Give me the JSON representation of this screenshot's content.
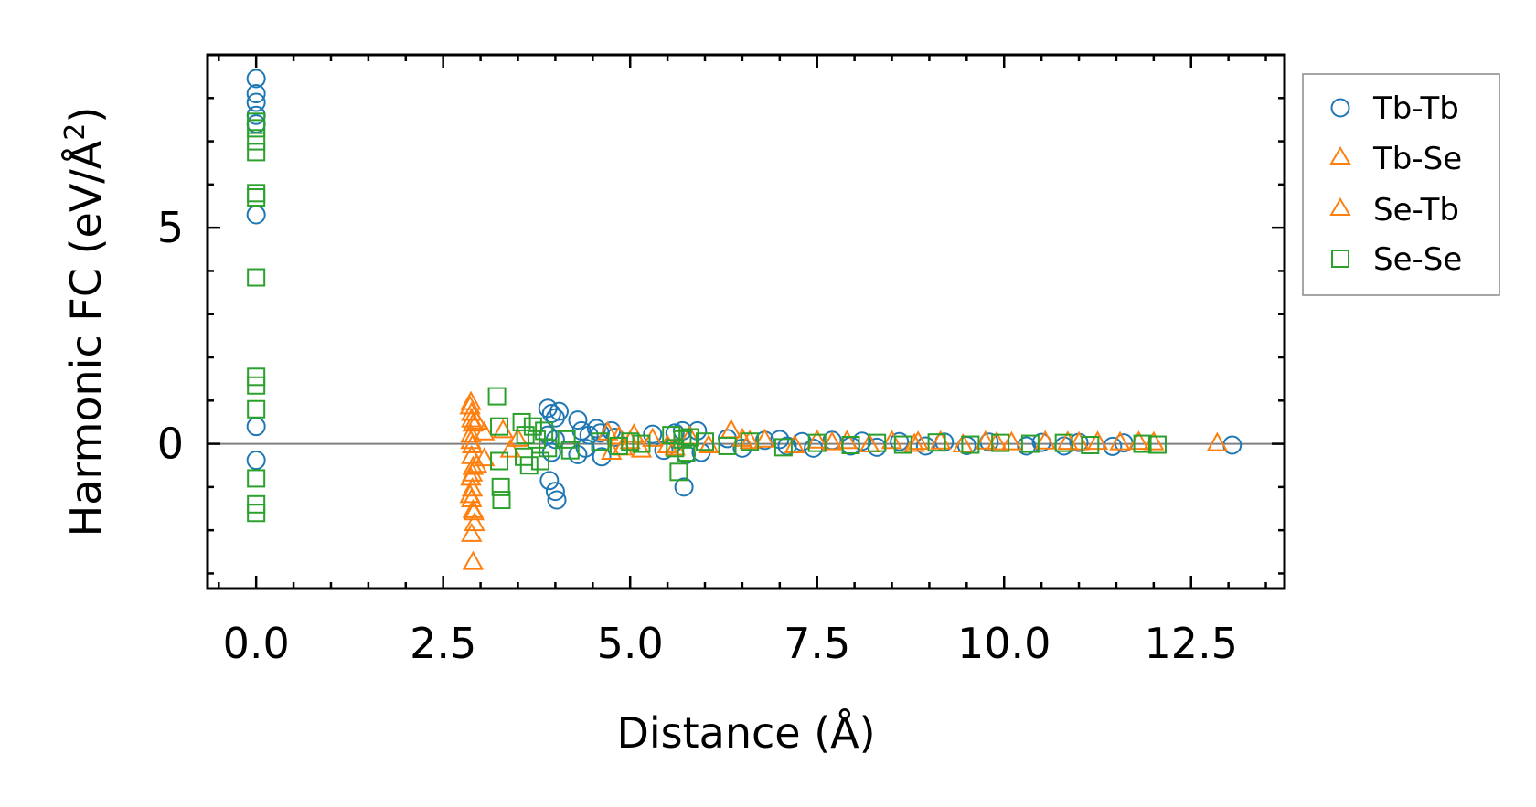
{
  "chart_data": {
    "type": "scatter",
    "title": "",
    "xlabel": "Distance (Å)",
    "ylabel": "Harmonic FC (eV/Å²)",
    "ylabel_parts": {
      "main": "Harmonic FC (eV/Å",
      "sup": "2",
      "close": ")"
    },
    "xlim": [
      -0.65,
      13.75
    ],
    "ylim": [
      -3.35,
      9.0
    ],
    "xticks": [
      0.0,
      2.5,
      5.0,
      7.5,
      10.0,
      12.5
    ],
    "xtick_labels": [
      "0.0",
      "2.5",
      "5.0",
      "7.5",
      "10.0",
      "12.5"
    ],
    "yticks": [
      0,
      5
    ],
    "ytick_labels": [
      "0",
      "5"
    ],
    "zero_line": true,
    "legend_position": "outside-right-top",
    "series": [
      {
        "name": "Tb-Tb",
        "marker": "circle",
        "color": "#1f77b4",
        "points": [
          [
            0.0,
            8.45
          ],
          [
            0.0,
            8.1
          ],
          [
            0.0,
            7.9
          ],
          [
            0.0,
            7.6
          ],
          [
            0.0,
            7.4
          ],
          [
            0.0,
            5.3
          ],
          [
            0.0,
            0.4
          ],
          [
            0.0,
            -0.38
          ],
          [
            3.9,
            0.82
          ],
          [
            3.95,
            0.7
          ],
          [
            4.0,
            0.6
          ],
          [
            4.05,
            0.75
          ],
          [
            3.9,
            0.2
          ],
          [
            3.95,
            -0.2
          ],
          [
            4.0,
            0.1
          ],
          [
            3.92,
            -0.85
          ],
          [
            4.0,
            -1.1
          ],
          [
            4.02,
            -1.3
          ],
          [
            4.3,
            0.55
          ],
          [
            4.35,
            0.3
          ],
          [
            4.3,
            -0.25
          ],
          [
            4.4,
            -0.1
          ],
          [
            4.45,
            0.2
          ],
          [
            4.55,
            0.35
          ],
          [
            4.6,
            0.25
          ],
          [
            4.62,
            -0.3
          ],
          [
            4.75,
            0.3
          ],
          [
            4.8,
            0.15
          ],
          [
            5.3,
            0.22
          ],
          [
            5.45,
            -0.15
          ],
          [
            5.6,
            0.25
          ],
          [
            5.7,
            0.3
          ],
          [
            5.75,
            -0.25
          ],
          [
            5.72,
            -1.0
          ],
          [
            5.9,
            0.3
          ],
          [
            5.95,
            -0.2
          ],
          [
            6.3,
            0.12
          ],
          [
            6.5,
            -0.1
          ],
          [
            6.8,
            0.08
          ],
          [
            7.0,
            0.1
          ],
          [
            7.1,
            -0.05
          ],
          [
            7.3,
            0.05
          ],
          [
            7.45,
            -0.1
          ],
          [
            7.7,
            0.08
          ],
          [
            7.95,
            -0.05
          ],
          [
            8.1,
            0.06
          ],
          [
            8.3,
            -0.08
          ],
          [
            8.6,
            0.05
          ],
          [
            8.95,
            -0.05
          ],
          [
            9.2,
            0.04
          ],
          [
            9.5,
            -0.04
          ],
          [
            9.8,
            0.04
          ],
          [
            10.3,
            -0.05
          ],
          [
            10.5,
            0.03
          ],
          [
            10.8,
            -0.05
          ],
          [
            11.0,
            0.03
          ],
          [
            11.45,
            -0.06
          ],
          [
            11.6,
            0.02
          ],
          [
            13.05,
            -0.03
          ]
        ]
      },
      {
        "name": "Tb-Se",
        "marker": "triangle",
        "color": "#ff7f0e",
        "points": [
          [
            2.87,
            0.95
          ],
          [
            2.88,
            0.7
          ],
          [
            2.9,
            0.45
          ],
          [
            2.87,
            0.2
          ],
          [
            2.89,
            -0.05
          ],
          [
            2.88,
            -0.3
          ],
          [
            2.9,
            -0.55
          ],
          [
            2.87,
            -0.8
          ],
          [
            2.89,
            -1.05
          ],
          [
            2.88,
            -1.3
          ],
          [
            2.9,
            -1.55
          ],
          [
            2.92,
            -1.85
          ],
          [
            2.88,
            -2.1
          ],
          [
            2.9,
            -2.75
          ],
          [
            2.95,
            0.5
          ],
          [
            2.95,
            -0.5
          ],
          [
            3.05,
            0.25
          ],
          [
            3.05,
            -0.35
          ],
          [
            3.3,
            0.3
          ],
          [
            3.4,
            -0.15
          ],
          [
            3.5,
            0.1
          ],
          [
            4.7,
            0.25
          ],
          [
            4.75,
            -0.2
          ],
          [
            4.85,
            0.15
          ],
          [
            4.9,
            -0.1
          ],
          [
            5.05,
            0.2
          ],
          [
            5.15,
            -0.15
          ],
          [
            5.3,
            0.1
          ],
          [
            5.5,
            -0.05
          ],
          [
            5.8,
            0.15
          ],
          [
            6.05,
            -0.05
          ],
          [
            6.35,
            0.3
          ],
          [
            6.5,
            0.1
          ],
          [
            6.8,
            0.08
          ],
          [
            7.2,
            -0.05
          ],
          [
            7.5,
            0.06
          ],
          [
            7.9,
            0.05
          ],
          [
            8.2,
            -0.03
          ],
          [
            8.5,
            0.05
          ],
          [
            8.85,
            0.03
          ],
          [
            9.15,
            0.04
          ],
          [
            9.45,
            -0.03
          ],
          [
            9.75,
            0.04
          ],
          [
            10.1,
            0.02
          ],
          [
            10.55,
            0.04
          ],
          [
            10.85,
            0.03
          ],
          [
            11.25,
            0.03
          ],
          [
            11.55,
            0.02
          ],
          [
            11.8,
            0.03
          ],
          [
            12.0,
            0.02
          ],
          [
            12.85,
            0.0
          ]
        ]
      },
      {
        "name": "Se-Tb",
        "marker": "triangle",
        "color": "#ff7f0e",
        "points": [
          [
            2.86,
            0.85
          ],
          [
            2.88,
            0.55
          ],
          [
            2.87,
            0.05
          ],
          [
            2.89,
            -0.7
          ],
          [
            2.86,
            -1.2
          ],
          [
            2.91,
            -1.6
          ],
          [
            5.0,
            0.05
          ],
          [
            5.6,
            -0.1
          ],
          [
            6.6,
            0.05
          ],
          [
            7.7,
            0.02
          ],
          [
            8.8,
            -0.02
          ],
          [
            9.9,
            0.02
          ],
          [
            11.0,
            0.02
          ]
        ]
      },
      {
        "name": "Se-Se",
        "marker": "square",
        "color": "#2ca02c",
        "points": [
          [
            0.0,
            7.45
          ],
          [
            0.0,
            7.3
          ],
          [
            0.0,
            7.0
          ],
          [
            0.0,
            6.75
          ],
          [
            0.0,
            5.8
          ],
          [
            0.0,
            5.7
          ],
          [
            0.0,
            3.85
          ],
          [
            0.0,
            1.55
          ],
          [
            0.0,
            1.35
          ],
          [
            0.0,
            0.8
          ],
          [
            0.0,
            -0.8
          ],
          [
            0.0,
            -1.4
          ],
          [
            0.0,
            -1.6
          ],
          [
            3.22,
            1.1
          ],
          [
            3.25,
            0.4
          ],
          [
            3.25,
            -0.4
          ],
          [
            3.27,
            -1.0
          ],
          [
            3.28,
            -1.3
          ],
          [
            3.55,
            0.5
          ],
          [
            3.6,
            0.2
          ],
          [
            3.58,
            -0.3
          ],
          [
            3.65,
            -0.5
          ],
          [
            3.7,
            0.4
          ],
          [
            3.75,
            0.1
          ],
          [
            3.8,
            -0.4
          ],
          [
            3.85,
            0.3
          ],
          [
            3.9,
            -0.1
          ],
          [
            4.15,
            0.1
          ],
          [
            4.2,
            -0.15
          ],
          [
            4.6,
            0.05
          ],
          [
            4.85,
            -0.05
          ],
          [
            5.0,
            0.05
          ],
          [
            5.15,
            0.0
          ],
          [
            5.55,
            0.2
          ],
          [
            5.6,
            -0.1
          ],
          [
            5.65,
            -0.65
          ],
          [
            5.7,
            0.1
          ],
          [
            5.75,
            -0.2
          ],
          [
            5.8,
            0.15
          ],
          [
            6.0,
            0.05
          ],
          [
            6.3,
            -0.05
          ],
          [
            6.6,
            0.05
          ],
          [
            7.05,
            -0.08
          ],
          [
            7.5,
            0.02
          ],
          [
            7.95,
            -0.03
          ],
          [
            8.3,
            0.02
          ],
          [
            8.65,
            -0.02
          ],
          [
            9.1,
            0.03
          ],
          [
            9.55,
            -0.02
          ],
          [
            9.95,
            0.02
          ],
          [
            10.35,
            0.0
          ],
          [
            10.8,
            0.02
          ],
          [
            11.15,
            -0.03
          ],
          [
            11.85,
            0.0
          ],
          [
            12.05,
            -0.02
          ]
        ]
      }
    ]
  }
}
